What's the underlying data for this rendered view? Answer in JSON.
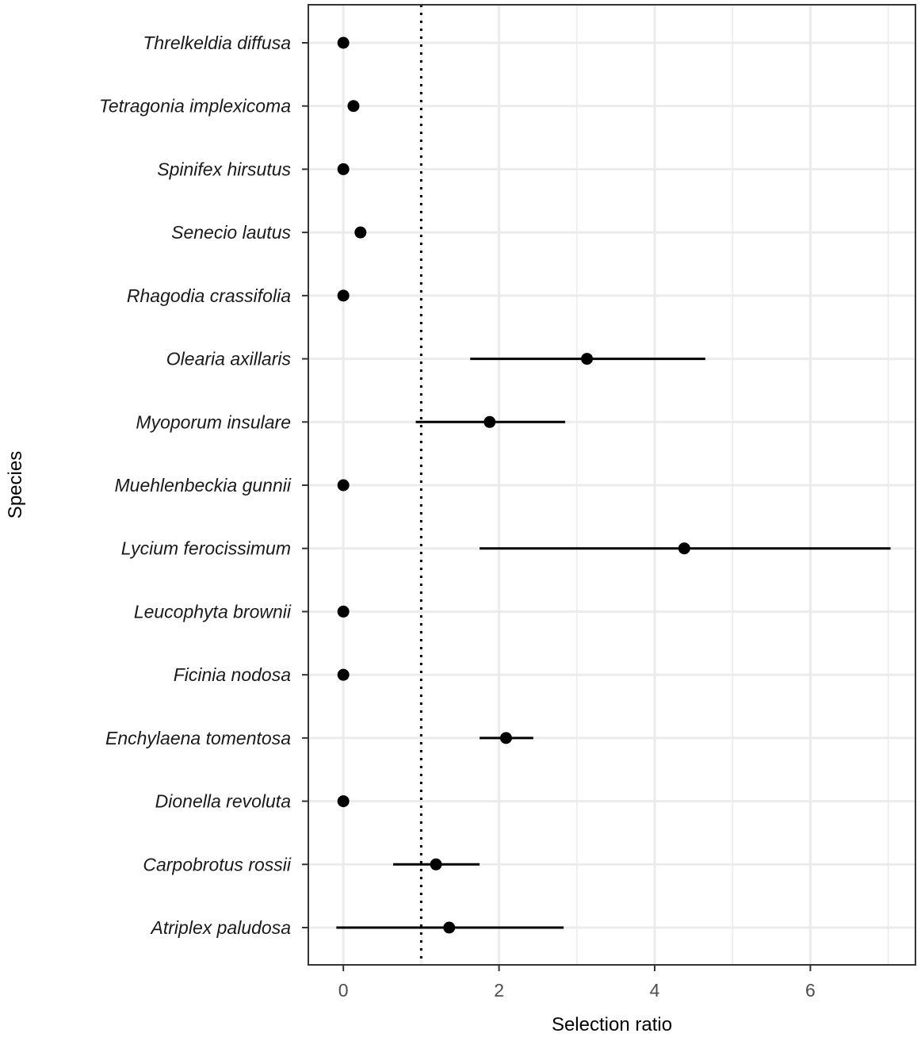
{
  "chart_data": {
    "type": "scatter",
    "title": "",
    "xlabel": "Selection ratio",
    "ylabel": "Species",
    "xlim": [
      -0.45,
      7.35
    ],
    "xticks": [
      0,
      2,
      4,
      6
    ],
    "grid": true,
    "reference_line": {
      "x": 1,
      "style": "dotted"
    },
    "categories": [
      "Threlkeldia diffusa",
      "Tetragonia implexicoma",
      "Spinifex hirsutus",
      "Senecio lautus",
      "Rhagodia crassifolia",
      "Olearia axillaris",
      "Myoporum insulare",
      "Muehlenbeckia gunnii",
      "Lycium ferocissimum",
      "Leucophyta brownii",
      "Ficinia nodosa",
      "Enchylaena tomentosa",
      "Dionella revoluta",
      "Carpobrotus rossii",
      "Atriplex paludosa"
    ],
    "series": [
      {
        "values": [
          0,
          0.13,
          0,
          0.22,
          0,
          3.13,
          1.88,
          0,
          4.38,
          0,
          0,
          2.09,
          0,
          1.19,
          1.36
        ],
        "lower": [
          null,
          null,
          null,
          null,
          null,
          1.63,
          0.93,
          null,
          1.75,
          null,
          null,
          1.75,
          null,
          0.64,
          -0.09
        ],
        "upper": [
          null,
          null,
          null,
          null,
          null,
          4.65,
          2.85,
          null,
          7.03,
          null,
          null,
          2.44,
          null,
          1.75,
          2.83
        ]
      }
    ],
    "colors": {
      "points": "#000000",
      "grid": "#ebebeb",
      "panel_border": "#333333"
    }
  }
}
